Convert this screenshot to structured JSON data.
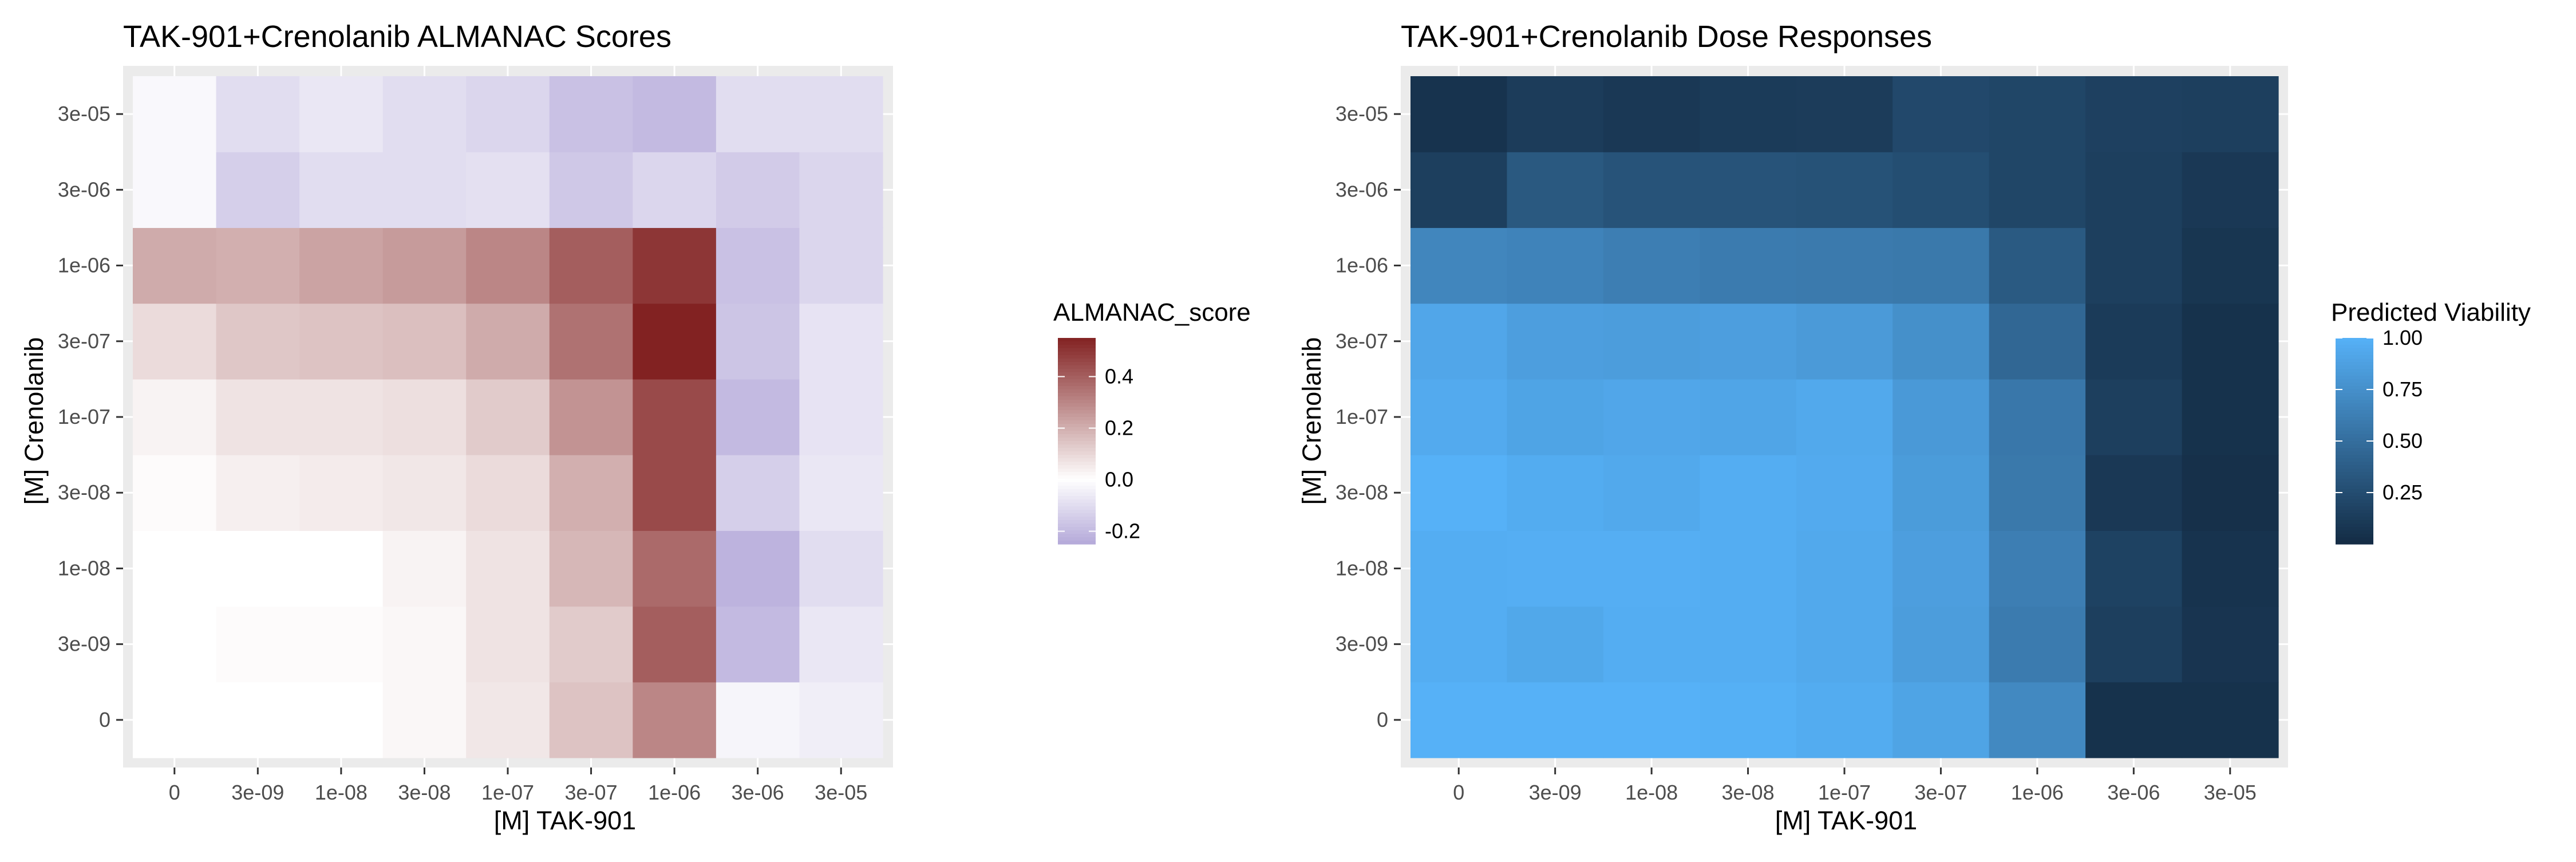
{
  "chart_data": [
    {
      "type": "heatmap",
      "title": "TAK-901+Crenolanib ALMANAC Scores",
      "xlabel": "[M] TAK-901",
      "ylabel": "[M] Crenolanib",
      "x_categories": [
        "0",
        "3e-09",
        "1e-08",
        "3e-08",
        "1e-07",
        "3e-07",
        "1e-06",
        "3e-06",
        "3e-05"
      ],
      "y_categories": [
        "0",
        "3e-09",
        "1e-08",
        "3e-08",
        "1e-07",
        "3e-07",
        "1e-06",
        "3e-06",
        "3e-05"
      ],
      "legend_title": "ALMANAC_score",
      "legend_ticks": [
        "0.4",
        "0.2",
        "0.0",
        "-0.2"
      ],
      "legend_tick_values": [
        0.4,
        0.2,
        0.0,
        -0.2
      ],
      "value_range": [
        -0.25,
        0.55
      ],
      "colors": {
        "low": "#b4a9d9",
        "mid": "#ffffff",
        "high": "#822222"
      },
      "values": [
        [
          0.0,
          0.0,
          0.0,
          0.02,
          0.06,
          0.15,
          0.3,
          -0.03,
          -0.05
        ],
        [
          0.0,
          0.01,
          0.01,
          0.02,
          0.07,
          0.13,
          0.4,
          -0.2,
          -0.07
        ],
        [
          0.0,
          0.0,
          0.0,
          0.03,
          0.07,
          0.18,
          0.37,
          -0.22,
          -0.1
        ],
        [
          0.01,
          0.04,
          0.05,
          0.06,
          0.09,
          0.2,
          0.45,
          -0.14,
          -0.07
        ],
        [
          0.03,
          0.07,
          0.07,
          0.08,
          0.13,
          0.27,
          0.45,
          -0.2,
          -0.08
        ],
        [
          0.09,
          0.14,
          0.15,
          0.16,
          0.21,
          0.35,
          0.55,
          -0.17,
          -0.08
        ],
        [
          0.21,
          0.2,
          0.23,
          0.25,
          0.3,
          0.4,
          0.5,
          -0.18,
          -0.12
        ],
        [
          -0.02,
          -0.14,
          -0.1,
          -0.1,
          -0.09,
          -0.16,
          -0.12,
          -0.15,
          -0.12
        ],
        [
          -0.02,
          -0.1,
          -0.07,
          -0.1,
          -0.12,
          -0.18,
          -0.2,
          -0.1,
          -0.1
        ]
      ]
    },
    {
      "type": "heatmap",
      "title": "TAK-901+Crenolanib Dose Responses",
      "xlabel": "[M] TAK-901",
      "ylabel": "[M] Crenolanib",
      "x_categories": [
        "0",
        "3e-09",
        "1e-08",
        "3e-08",
        "1e-07",
        "3e-07",
        "1e-06",
        "3e-06",
        "3e-05"
      ],
      "y_categories": [
        "0",
        "3e-09",
        "1e-08",
        "3e-08",
        "1e-07",
        "3e-07",
        "1e-06",
        "3e-06",
        "3e-05"
      ],
      "legend_title": "Predicted Viability",
      "legend_ticks": [
        "1.00",
        "0.75",
        "0.50",
        "0.25"
      ],
      "legend_tick_values": [
        1.0,
        0.75,
        0.5,
        0.25
      ],
      "value_range": [
        0.0,
        1.0
      ],
      "colors": {
        "low": "#132b43",
        "high": "#56b1f7"
      },
      "values": [
        [
          1.0,
          1.0,
          1.0,
          0.99,
          0.96,
          0.9,
          0.7,
          0.05,
          0.05
        ],
        [
          0.97,
          0.93,
          0.97,
          0.97,
          0.94,
          0.85,
          0.6,
          0.15,
          0.07
        ],
        [
          0.97,
          0.98,
          0.98,
          0.97,
          0.94,
          0.86,
          0.62,
          0.17,
          0.06
        ],
        [
          1.0,
          0.96,
          0.94,
          0.97,
          0.95,
          0.84,
          0.58,
          0.1,
          0.04
        ],
        [
          0.95,
          0.9,
          0.92,
          0.91,
          0.94,
          0.82,
          0.57,
          0.15,
          0.05
        ],
        [
          0.92,
          0.86,
          0.85,
          0.86,
          0.83,
          0.75,
          0.45,
          0.12,
          0.05
        ],
        [
          0.68,
          0.66,
          0.62,
          0.6,
          0.59,
          0.58,
          0.35,
          0.15,
          0.08
        ],
        [
          0.15,
          0.34,
          0.3,
          0.3,
          0.29,
          0.26,
          0.2,
          0.15,
          0.1
        ],
        [
          0.06,
          0.13,
          0.1,
          0.12,
          0.13,
          0.22,
          0.2,
          0.16,
          0.15
        ]
      ]
    }
  ]
}
